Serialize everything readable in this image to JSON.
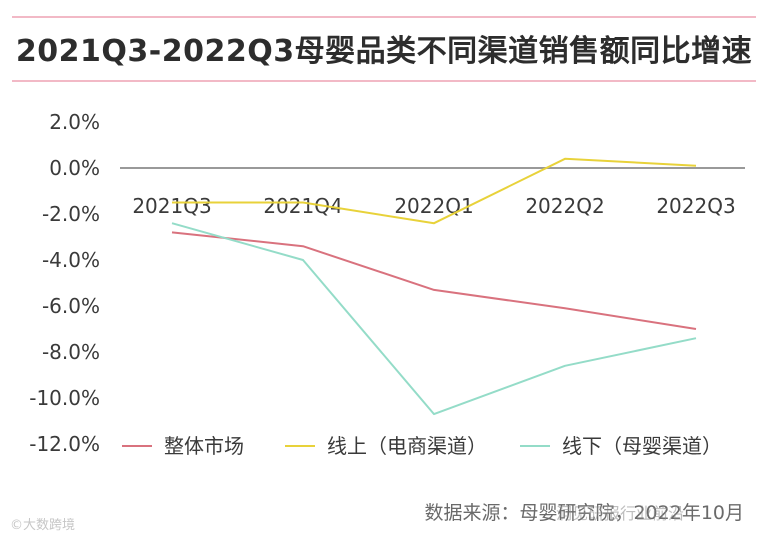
{
  "title": "2021Q3-2022Q3母婴品类不同渠道销售额同比增速",
  "source": "数据来源：母婴研究院，2022年10月",
  "watermarks": {
    "left": "©大数跨境",
    "right": "洞见研报行业前沿"
  },
  "colors": {
    "rule": "#f2b9c6",
    "zero_line": "#999999"
  },
  "chart_data": {
    "type": "line",
    "categories": [
      "2021Q3",
      "2021Q4",
      "2022Q1",
      "2022Q2",
      "2022Q3"
    ],
    "y_ticks": [
      "2.0%",
      "0.0%",
      "-2.0%",
      "-4.0%",
      "-6.0%",
      "-8.0%",
      "-10.0%",
      "-12.0%"
    ],
    "ylim": [
      -12,
      2
    ],
    "y_unit": "%",
    "grid": false,
    "legend_position": "bottom",
    "series": [
      {
        "name": "整体市场",
        "color": "#d9727e",
        "values": [
          -2.8,
          -3.4,
          -5.3,
          -6.1,
          -7.0
        ]
      },
      {
        "name": "线上（电商渠道）",
        "color": "#e8d23a",
        "values": [
          -1.5,
          -1.5,
          -2.4,
          0.4,
          0.1
        ]
      },
      {
        "name": "线下（母婴渠道）",
        "color": "#94dcc8",
        "values": [
          -2.4,
          -4.0,
          -10.7,
          -8.6,
          -7.4
        ]
      }
    ]
  }
}
